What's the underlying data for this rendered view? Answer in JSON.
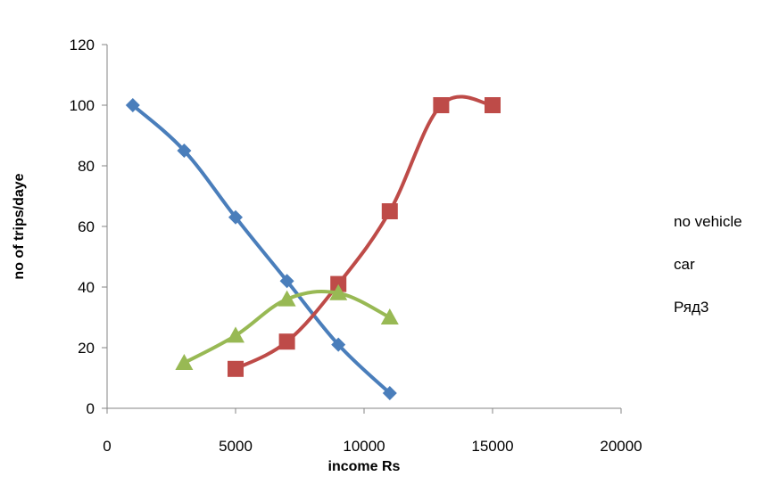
{
  "chart_data": {
    "type": "scatter",
    "title": "",
    "xlabel": "income  Rs",
    "ylabel": "no of trips/daye",
    "xlim": [
      0,
      20000
    ],
    "ylim": [
      0,
      120
    ],
    "x_ticks": [
      "0",
      "5000",
      "10000",
      "15000",
      "20000"
    ],
    "y_ticks": [
      "0",
      "20",
      "40",
      "60",
      "80",
      "100",
      "120"
    ],
    "grid": false,
    "legend_position": "right",
    "series": [
      {
        "name": "no vehicle",
        "marker": "diamond",
        "color": "#4a7ebb",
        "smooth": true,
        "points": [
          [
            1000,
            100
          ],
          [
            3000,
            85
          ],
          [
            5000,
            63
          ],
          [
            7000,
            42
          ],
          [
            9000,
            21
          ],
          [
            11000,
            5
          ]
        ]
      },
      {
        "name": "car",
        "marker": "square",
        "color": "#be4b48",
        "smooth": true,
        "points": [
          [
            5000,
            13
          ],
          [
            7000,
            22
          ],
          [
            9000,
            41
          ],
          [
            11000,
            65
          ],
          [
            13000,
            100
          ],
          [
            15000,
            100
          ]
        ]
      },
      {
        "name": "Ряд3",
        "marker": "triangle",
        "color": "#98b954",
        "smooth": true,
        "points": [
          [
            3000,
            15
          ],
          [
            5000,
            24
          ],
          [
            7000,
            36
          ],
          [
            9000,
            38
          ],
          [
            11000,
            30
          ]
        ]
      }
    ]
  }
}
